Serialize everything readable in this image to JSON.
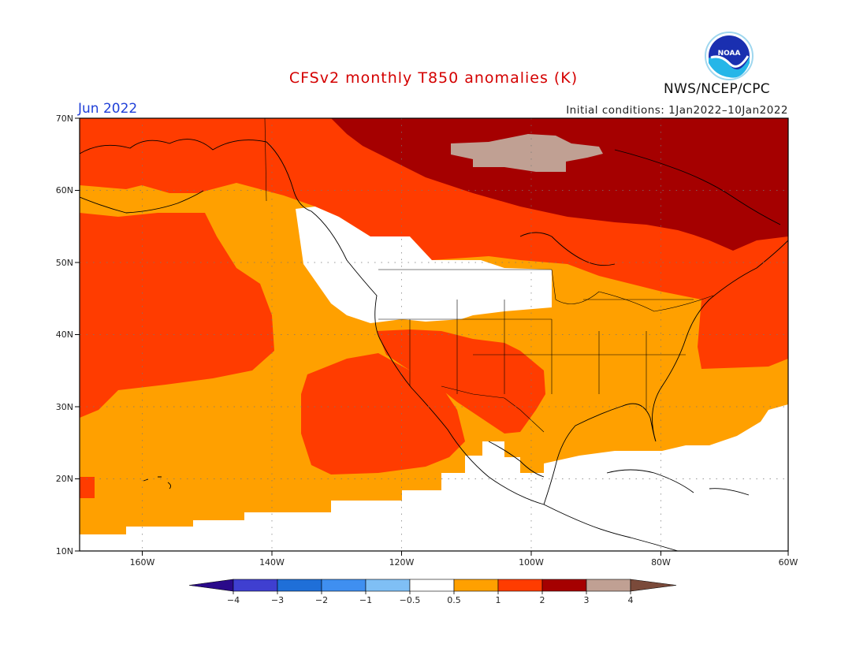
{
  "title": "CFSv2 monthly T850 anomalies (K)",
  "month": "Jun 2022",
  "initial_conditions": "Initial conditions: 1Jan2022–10Jan2022",
  "agency": "NWS/NCEP/CPC",
  "logo_text": "NOAA",
  "colors": {
    "title": "#d40000",
    "month": "#1f3fd8",
    "b_n05_05": "#ffffff",
    "b_05_1": "#ffa000",
    "b_1_2": "#ff3c00",
    "b_2_3": "#a50000",
    "b_3_4": "#c0a093",
    "b_gt4": "#7a4a3a"
  },
  "map": {
    "lon_range": [
      -172,
      -60
    ],
    "lat_range": [
      10,
      70
    ],
    "lat_labels": [
      "10N",
      "20N",
      "30N",
      "40N",
      "50N",
      "60N",
      "70N"
    ],
    "lon_labels": [
      "160W",
      "140W",
      "120W",
      "100W",
      "80W",
      "60W"
    ]
  },
  "colorbar": {
    "labels": [
      "−4",
      "−3",
      "−2",
      "−1",
      "−0.5",
      "0.5",
      "1",
      "2",
      "3",
      "4"
    ],
    "colors": [
      "#2a0a8a",
      "#3f3fd0",
      "#1f6fd8",
      "#3f8ff0",
      "#7fbff5",
      "#ffffff",
      "#ffa000",
      "#ff3c00",
      "#a50000",
      "#c0a093",
      "#7a4a3a"
    ]
  }
}
